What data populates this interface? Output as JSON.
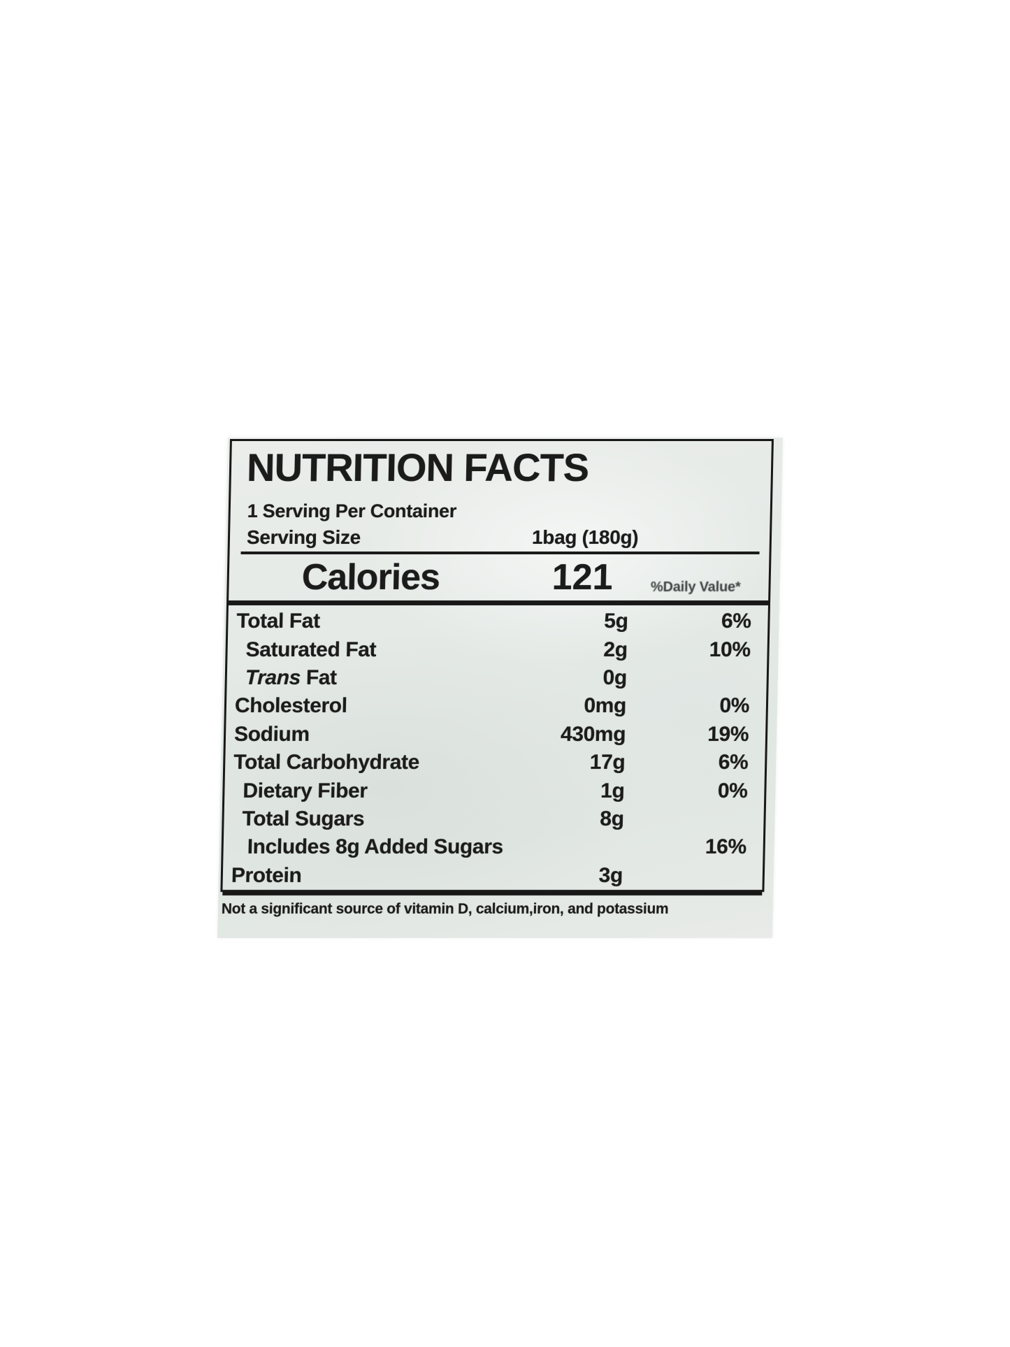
{
  "label": {
    "title": "NUTRITION FACTS",
    "servings_per_container": "1 Serving Per Container",
    "serving_size_label": "Serving Size",
    "serving_size_value": "1bag (180g)",
    "calories_label": "Calories",
    "calories_value": "121",
    "daily_value_header": "%Daily Value*",
    "rows": [
      {
        "name": "Total Fat",
        "amount": "5g",
        "dv": "6%",
        "indent": 0
      },
      {
        "name": "Saturated Fat",
        "amount": "2g",
        "dv": "10%",
        "indent": 1
      },
      {
        "name": "Fat",
        "italic_prefix": "Trans",
        "amount": "0g",
        "dv": "",
        "indent": 1
      },
      {
        "name": "Cholesterol",
        "amount": "0mg",
        "dv": "0%",
        "indent": 0
      },
      {
        "name": "Sodium",
        "amount": "430mg",
        "dv": "19%",
        "indent": 0
      },
      {
        "name": "Total Carbohydrate",
        "amount": "17g",
        "dv": "6%",
        "indent": 0
      },
      {
        "name": "Dietary Fiber",
        "amount": "1g",
        "dv": "0%",
        "indent": 1
      },
      {
        "name": "Total Sugars",
        "amount": "8g",
        "dv": "",
        "indent": 1
      },
      {
        "name": "Includes 8g Added Sugars",
        "amount": "",
        "dv": "16%",
        "indent": 2
      },
      {
        "name": "Protein",
        "amount": "3g",
        "dv": "",
        "indent": 0
      }
    ],
    "footnote": "Not a significant source of  vitamin D, calcium,iron, and potassium"
  },
  "colors": {
    "page_bg": "#ffffff",
    "label_bg": "#e6eae7",
    "ink": "#1b1b1b"
  }
}
